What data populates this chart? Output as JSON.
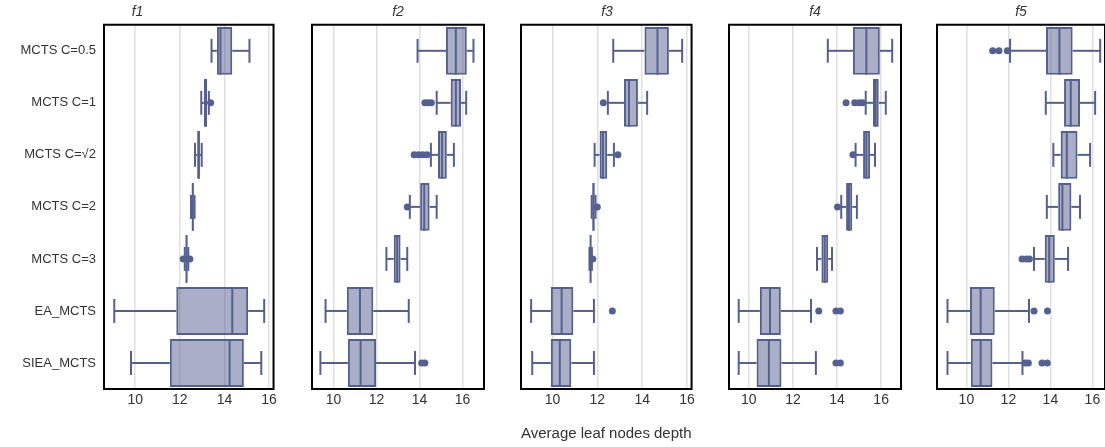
{
  "chart_data": [
    {
      "type": "box",
      "title": "f1",
      "orientation": "horizontal",
      "grid": "x",
      "color": "#56608f",
      "categories": [
        "MCTS C=0.5",
        "MCTS C=1",
        "MCTS C=√2",
        "MCTS C=2",
        "MCTS C=3",
        "EA_MCTS",
        "SIEA_MCTS"
      ],
      "xlim": [
        8.6,
        16.2
      ],
      "xticks": [
        10,
        12,
        14,
        16
      ],
      "boxes": [
        {
          "low": 13.42,
          "q1": 13.66,
          "median": 13.82,
          "q3": 14.35,
          "high": 15.12
        },
        {
          "low": 12.96,
          "q1": 13.08,
          "median": 13.15,
          "q3": 13.22,
          "high": 13.3,
          "outliers": [
            13.38
          ]
        },
        {
          "low": 12.68,
          "q1": 12.78,
          "median": 12.84,
          "q3": 12.9,
          "high": 12.98
        },
        {
          "low": 12.5,
          "q1": 12.54,
          "median": 12.58,
          "q3": 12.62,
          "high": 12.66
        },
        {
          "low": 12.22,
          "q1": 12.26,
          "median": 12.3,
          "q3": 12.34,
          "high": 12.38,
          "outliers": [
            12.15,
            12.45
          ]
        },
        {
          "low": 9.06,
          "q1": 11.84,
          "median": 14.35,
          "q3": 15.06,
          "high": 15.78
        },
        {
          "low": 9.81,
          "q1": 11.55,
          "median": 14.23,
          "q3": 14.87,
          "high": 15.65
        }
      ]
    },
    {
      "type": "box",
      "title": "f2",
      "orientation": "horizontal",
      "grid": "x",
      "tick_labels": "x",
      "color": "#56608f",
      "xlim": [
        9,
        17
      ],
      "xticks": [
        10,
        12,
        14,
        16
      ],
      "boxes": [
        {
          "low": 13.91,
          "q1": 15.23,
          "median": 15.69,
          "q3": 16.2,
          "high": 16.51
        },
        {
          "low": 14.8,
          "q1": 15.45,
          "median": 15.69,
          "q3": 15.93,
          "high": 16.17,
          "outliers": [
            14.25,
            14.4,
            14.55
          ]
        },
        {
          "low": 14.53,
          "q1": 14.86,
          "median": 15.05,
          "q3": 15.27,
          "high": 15.6,
          "outliers": [
            13.75,
            13.95,
            14.15,
            14.35
          ]
        },
        {
          "low": 13.55,
          "q1": 14.03,
          "median": 14.22,
          "q3": 14.47,
          "high": 14.8,
          "outliers": [
            13.43
          ]
        },
        {
          "low": 12.46,
          "q1": 12.8,
          "median": 12.96,
          "q3": 13.12,
          "high": 13.43
        },
        {
          "low": 9.63,
          "q1": 10.62,
          "median": 11.23,
          "q3": 11.85,
          "high": 13.5
        },
        {
          "low": 9.39,
          "q1": 10.67,
          "median": 11.26,
          "q3": 11.98,
          "high": 13.79,
          "outliers": [
            14.1,
            14.25
          ]
        }
      ]
    },
    {
      "type": "box",
      "title": "f3",
      "xlabel": "Average leaf nodes depth",
      "orientation": "horizontal",
      "grid": "x",
      "tick_labels": "x",
      "color": "#56608f",
      "xlim": [
        8.6,
        16.2
      ],
      "xticks": [
        10,
        12,
        14,
        16
      ],
      "boxes": [
        {
          "low": 12.71,
          "q1": 14.1,
          "median": 14.68,
          "q3": 15.19,
          "high": 15.78
        },
        {
          "low": 12.47,
          "q1": 13.19,
          "median": 13.41,
          "q3": 13.81,
          "high": 14.22,
          "outliers": [
            12.27
          ]
        },
        {
          "low": 11.88,
          "q1": 12.1,
          "median": 12.25,
          "q3": 12.44,
          "high": 12.74,
          "outliers": [
            12.92
          ]
        },
        {
          "low": 11.75,
          "q1": 11.78,
          "median": 11.83,
          "q3": 11.88,
          "high": 11.92,
          "outliers": [
            12.0
          ]
        },
        {
          "low": 11.65,
          "q1": 11.68,
          "median": 11.7,
          "q3": 11.73,
          "high": 11.76,
          "outliers": [
            11.8
          ]
        },
        {
          "low": 9.05,
          "q1": 9.93,
          "median": 10.41,
          "q3": 10.93,
          "high": 11.85,
          "outliers": [
            12.67
          ]
        },
        {
          "low": 9.1,
          "q1": 9.93,
          "median": 10.33,
          "q3": 10.84,
          "high": 11.85
        }
      ]
    },
    {
      "type": "box",
      "title": "f4",
      "orientation": "horizontal",
      "grid": "x",
      "tick_labels": "x",
      "color": "#56608f",
      "xlim": [
        9.1,
        16.9
      ],
      "xticks": [
        10,
        12,
        14,
        16
      ],
      "boxes": [
        {
          "low": 13.58,
          "q1": 14.72,
          "median": 15.33,
          "q3": 15.94,
          "high": 16.5
        },
        {
          "low": 15.3,
          "q1": 15.63,
          "median": 15.75,
          "q3": 15.89,
          "high": 16.21,
          "outliers": [
            14.41,
            14.8,
            15.0,
            15.15
          ]
        },
        {
          "low": 14.84,
          "q1": 15.18,
          "median": 15.33,
          "q3": 15.5,
          "high": 15.72,
          "outliers": [
            14.72
          ]
        },
        {
          "low": 14.19,
          "q1": 14.41,
          "median": 14.54,
          "q3": 14.69,
          "high": 14.9,
          "outliers": [
            14.02
          ]
        },
        {
          "low": 13.09,
          "q1": 13.29,
          "median": 13.44,
          "q3": 13.6,
          "high": 13.77
        },
        {
          "low": 9.54,
          "q1": 10.5,
          "median": 10.96,
          "q3": 11.45,
          "high": 12.82,
          "outliers": [
            13.17,
            13.95,
            14.15
          ]
        },
        {
          "low": 9.54,
          "q1": 10.35,
          "median": 10.91,
          "q3": 11.48,
          "high": 13.04,
          "outliers": [
            13.95,
            14.15
          ]
        }
      ]
    },
    {
      "type": "box",
      "title": "f5",
      "orientation": "horizontal",
      "grid": "x",
      "tick_labels": "x",
      "color": "#56608f",
      "xlim": [
        8.6,
        16.6
      ],
      "xticks": [
        10,
        12,
        14,
        16
      ],
      "boxes": [
        {
          "low": 12.08,
          "q1": 13.79,
          "median": 14.43,
          "q3": 15.06,
          "high": 16.37,
          "outliers": [
            11.25,
            11.55,
            11.95
          ]
        },
        {
          "low": 13.78,
          "q1": 14.65,
          "median": 14.97,
          "q3": 15.41,
          "high": 16.13
        },
        {
          "low": 14.14,
          "q1": 14.49,
          "median": 14.78,
          "q3": 15.29,
          "high": 15.89
        },
        {
          "low": 13.83,
          "q1": 14.37,
          "median": 14.57,
          "q3": 15.0,
          "high": 15.41
        },
        {
          "low": 13.22,
          "q1": 13.73,
          "median": 13.94,
          "q3": 14.21,
          "high": 14.84,
          "outliers": [
            12.65,
            12.85,
            13.0
          ]
        },
        {
          "low": 9.1,
          "q1": 10.17,
          "median": 10.68,
          "q3": 11.35,
          "high": 12.98,
          "outliers": [
            13.22,
            13.86
          ]
        },
        {
          "low": 9.1,
          "q1": 10.21,
          "median": 10.68,
          "q3": 11.24,
          "high": 12.67,
          "outliers": [
            12.8,
            12.95,
            13.6,
            13.85
          ]
        }
      ]
    }
  ]
}
